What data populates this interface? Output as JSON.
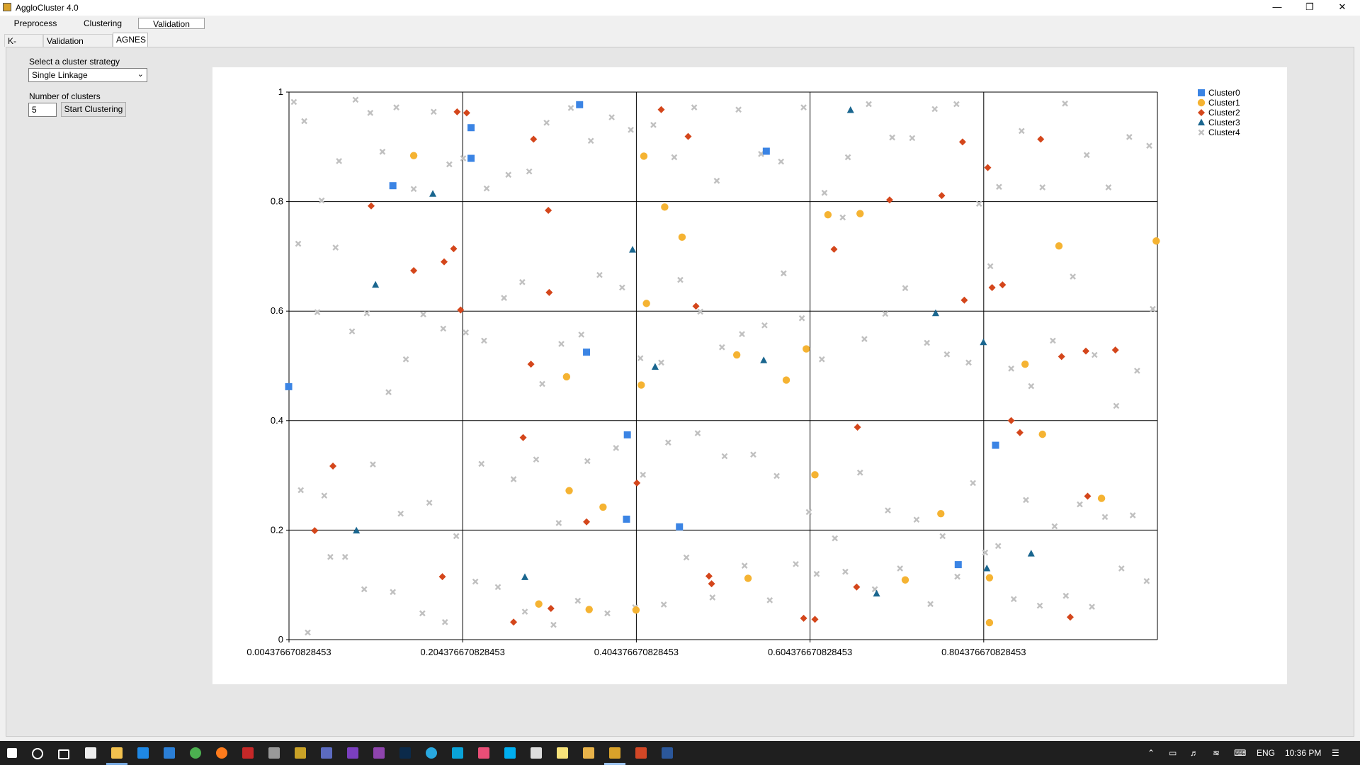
{
  "window": {
    "title": "AggloCluster 4.0"
  },
  "menu": {
    "tabs": [
      "Preprocess",
      "Clustering",
      "Validation"
    ],
    "active": "Validation"
  },
  "subtabs": {
    "tabs": [
      "K-Means",
      "Validation Indexes",
      "AGNES"
    ],
    "active": "AGNES"
  },
  "form": {
    "strategy_label": "Select a cluster strategy",
    "strategy_value": "Single Linkage",
    "clusters_label": "Number of clusters",
    "clusters_value": "5",
    "start_button": "Start Clustering"
  },
  "taskbar": {
    "lang": "ENG",
    "time": "10:36 PM"
  },
  "chart_data": {
    "type": "scatter",
    "xlim": [
      0.004376670828453,
      1.004376670828453
    ],
    "ylim": [
      0,
      1
    ],
    "x_ticks": [
      "0.004376670828453",
      "0.204376670828453",
      "0.404376670828453",
      "0.604376670828453",
      "0.804376670828453"
    ],
    "y_ticks": [
      "0",
      "0.2",
      "0.4",
      "0.6",
      "0.8",
      "1"
    ],
    "grid": true,
    "legend_position": "top-right",
    "series": [
      {
        "name": "Cluster0",
        "marker": "square",
        "color": "#3b84e4",
        "x": [
          0.004,
          0.124,
          0.214,
          0.214,
          0.339,
          0.347,
          0.394,
          0.393,
          0.454,
          0.554,
          0.775,
          0.818
        ],
        "y": [
          0.462,
          0.829,
          0.935,
          0.879,
          0.977,
          0.525,
          0.374,
          0.22,
          0.206,
          0.892,
          0.137,
          0.355
        ]
      },
      {
        "name": "Cluster1",
        "marker": "circle",
        "color": "#f5b332",
        "x": [
          0.148,
          0.292,
          0.324,
          0.327,
          0.35,
          0.366,
          0.404,
          0.41,
          0.416,
          0.413,
          0.437,
          0.457,
          0.52,
          0.533,
          0.577,
          0.6,
          0.61,
          0.625,
          0.662,
          0.714,
          0.755,
          0.811,
          0.811,
          0.852,
          0.872,
          0.891,
          0.94,
          1.003
        ],
        "y": [
          0.884,
          0.065,
          0.48,
          0.272,
          0.055,
          0.242,
          0.054,
          0.465,
          0.614,
          0.883,
          0.79,
          0.735,
          0.52,
          0.112,
          0.474,
          0.531,
          0.301,
          0.776,
          0.778,
          0.109,
          0.23,
          0.031,
          0.113,
          0.503,
          0.375,
          0.719,
          0.258,
          0.728
        ]
      },
      {
        "name": "Cluster2",
        "marker": "diamond",
        "color": "#d4461b",
        "x": [
          0.034,
          0.055,
          0.099,
          0.148,
          0.181,
          0.183,
          0.194,
          0.198,
          0.202,
          0.209,
          0.263,
          0.274,
          0.283,
          0.286,
          0.303,
          0.304,
          0.306,
          0.347,
          0.405,
          0.433,
          0.464,
          0.473,
          0.488,
          0.491,
          0.597,
          0.61,
          0.632,
          0.658,
          0.659,
          0.696,
          0.756,
          0.78,
          0.782,
          0.809,
          0.814,
          0.826,
          0.836,
          0.846,
          0.87,
          0.894,
          0.904,
          0.924,
          0.922,
          0.956
        ],
        "y": [
          0.199,
          0.317,
          0.792,
          0.674,
          0.115,
          0.69,
          0.714,
          0.964,
          0.602,
          0.962,
          0.032,
          0.369,
          0.503,
          0.914,
          0.784,
          0.634,
          0.057,
          0.215,
          0.286,
          0.968,
          0.919,
          0.609,
          0.116,
          0.102,
          0.039,
          0.037,
          0.713,
          0.096,
          0.388,
          0.803,
          0.811,
          0.909,
          0.62,
          0.862,
          0.643,
          0.648,
          0.4,
          0.378,
          0.914,
          0.517,
          0.041,
          0.262,
          0.527,
          0.529
        ]
      },
      {
        "name": "Cluster3",
        "marker": "triangle",
        "color": "#1a668f",
        "x": [
          0.082,
          0.104,
          0.17,
          0.276,
          0.4,
          0.426,
          0.551,
          0.651,
          0.681,
          0.749,
          0.804,
          0.808,
          0.859
        ],
        "y": [
          0.199,
          0.648,
          0.814,
          0.114,
          0.712,
          0.498,
          0.51,
          0.967,
          0.084,
          0.596,
          0.543,
          0.13,
          0.157
        ]
      },
      {
        "name": "Cluster4",
        "marker": "x",
        "color": "#c0c0c0",
        "x": [
          0.01,
          0.022,
          0.042,
          0.062,
          0.081,
          0.098,
          0.112,
          0.128,
          0.148,
          0.171,
          0.189,
          0.205,
          0.232,
          0.257,
          0.281,
          0.301,
          0.329,
          0.352,
          0.376,
          0.398,
          0.424,
          0.448,
          0.471,
          0.497,
          0.522,
          0.548,
          0.571,
          0.597,
          0.621,
          0.648,
          0.672,
          0.699,
          0.722,
          0.748,
          0.773,
          0.799,
          0.822,
          0.848,
          0.872,
          0.898,
          0.923,
          0.948,
          0.972,
          0.995,
          0.015,
          0.037,
          0.058,
          0.077,
          0.094,
          0.119,
          0.139,
          0.159,
          0.182,
          0.208,
          0.229,
          0.252,
          0.273,
          0.296,
          0.318,
          0.341,
          0.362,
          0.388,
          0.409,
          0.433,
          0.455,
          0.478,
          0.503,
          0.526,
          0.552,
          0.574,
          0.595,
          0.618,
          0.642,
          0.667,
          0.691,
          0.714,
          0.739,
          0.762,
          0.787,
          0.812,
          0.836,
          0.859,
          0.884,
          0.907,
          0.932,
          0.957,
          0.981,
          0.999,
          0.018,
          0.045,
          0.069,
          0.101,
          0.133,
          0.166,
          0.197,
          0.226,
          0.263,
          0.289,
          0.315,
          0.348,
          0.381,
          0.412,
          0.441,
          0.475,
          0.506,
          0.539,
          0.566,
          0.603,
          0.633,
          0.662,
          0.694,
          0.727,
          0.757,
          0.792,
          0.821,
          0.853,
          0.886,
          0.915,
          0.944,
          0.976,
          0.026,
          0.052,
          0.091,
          0.124,
          0.158,
          0.184,
          0.219,
          0.245,
          0.276,
          0.309,
          0.337,
          0.371,
          0.403,
          0.436,
          0.462,
          0.492,
          0.529,
          0.558,
          0.588,
          0.612,
          0.645,
          0.679,
          0.708,
          0.743,
          0.774,
          0.806,
          0.839,
          0.869,
          0.899,
          0.929,
          0.963,
          0.992
        ],
        "y": [
          0.982,
          0.947,
          0.802,
          0.874,
          0.986,
          0.962,
          0.891,
          0.972,
          0.823,
          0.964,
          0.868,
          0.879,
          0.824,
          0.849,
          0.855,
          0.944,
          0.971,
          0.911,
          0.954,
          0.931,
          0.94,
          0.881,
          0.972,
          0.838,
          0.968,
          0.887,
          0.873,
          0.972,
          0.816,
          0.881,
          0.978,
          0.917,
          0.916,
          0.969,
          0.978,
          0.796,
          0.827,
          0.929,
          0.826,
          0.979,
          0.885,
          0.826,
          0.918,
          0.902,
          0.723,
          0.598,
          0.716,
          0.563,
          0.596,
          0.452,
          0.512,
          0.594,
          0.568,
          0.561,
          0.546,
          0.624,
          0.653,
          0.467,
          0.54,
          0.557,
          0.666,
          0.643,
          0.514,
          0.506,
          0.657,
          0.599,
          0.534,
          0.558,
          0.574,
          0.669,
          0.587,
          0.512,
          0.771,
          0.549,
          0.595,
          0.642,
          0.542,
          0.521,
          0.506,
          0.682,
          0.495,
          0.463,
          0.546,
          0.663,
          0.52,
          0.427,
          0.491,
          0.604,
          0.273,
          0.263,
          0.151,
          0.32,
          0.23,
          0.25,
          0.189,
          0.321,
          0.293,
          0.329,
          0.213,
          0.326,
          0.35,
          0.301,
          0.36,
          0.377,
          0.335,
          0.338,
          0.299,
          0.233,
          0.185,
          0.305,
          0.236,
          0.219,
          0.189,
          0.286,
          0.171,
          0.255,
          0.207,
          0.247,
          0.224,
          0.227,
          0.013,
          0.151,
          0.092,
          0.087,
          0.048,
          0.032,
          0.106,
          0.096,
          0.051,
          0.027,
          0.071,
          0.048,
          0.059,
          0.064,
          0.15,
          0.077,
          0.135,
          0.072,
          0.138,
          0.12,
          0.124,
          0.092,
          0.13,
          0.065,
          0.115,
          0.159,
          0.074,
          0.062,
          0.08,
          0.06,
          0.13,
          0.107
        ]
      }
    ]
  }
}
